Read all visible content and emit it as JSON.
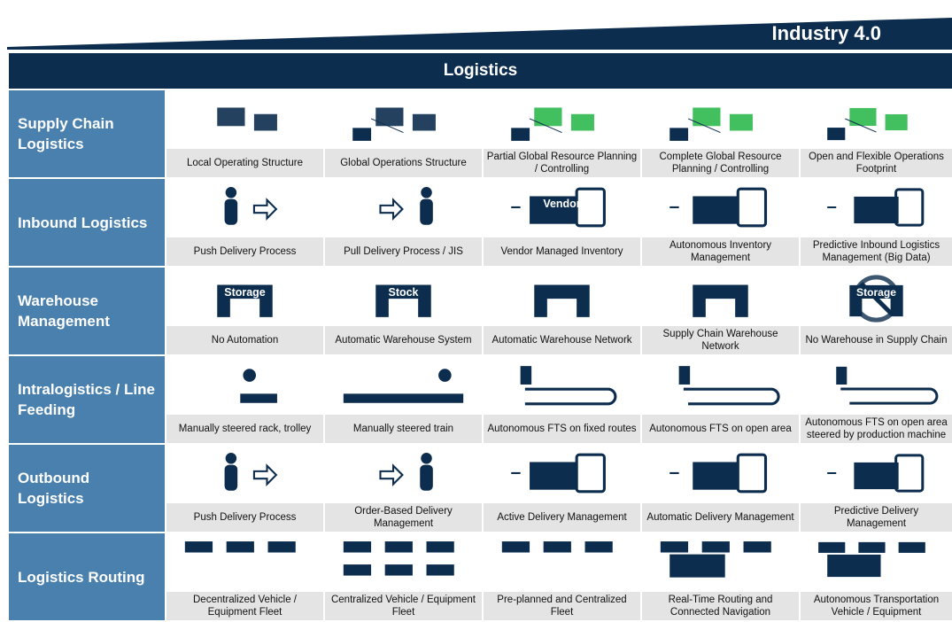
{
  "header": {
    "title": "Industry 4.0"
  },
  "table": {
    "title": "Logistics",
    "rows": [
      {
        "label": "Supply Chain Logistics",
        "cells": [
          {
            "caption": "Local Operating Structure"
          },
          {
            "caption": "Global Operations Structure"
          },
          {
            "caption": "Partial Global Resource Planning / Controlling"
          },
          {
            "caption": "Complete Global Resource Planning / Controlling"
          },
          {
            "caption": "Open and Flexible Operations Footprint"
          }
        ]
      },
      {
        "label": "Inbound Logistics",
        "cells": [
          {
            "caption": "Push Delivery Process"
          },
          {
            "caption": "Pull Delivery Process / JIS"
          },
          {
            "caption": "Vendor Managed Inventory",
            "icon_text": "Vendor"
          },
          {
            "caption": "Autonomous Inventory Management"
          },
          {
            "caption": "Predictive Inbound Logistics Management (Big Data)"
          }
        ]
      },
      {
        "label": "Warehouse Management",
        "cells": [
          {
            "caption": "No Automation",
            "icon_text": "Storage"
          },
          {
            "caption": "Automatic Warehouse System",
            "icon_text": "Stock"
          },
          {
            "caption": "Automatic Warehouse Network"
          },
          {
            "caption": "Supply Chain Warehouse Network"
          },
          {
            "caption": "No Warehouse in Supply Chain",
            "icon_text": "Storage"
          }
        ]
      },
      {
        "label": "Intralogistics / Line Feeding",
        "cells": [
          {
            "caption": "Manually steered rack, trolley"
          },
          {
            "caption": "Manually steered train"
          },
          {
            "caption": "Autonomous FTS on fixed routes"
          },
          {
            "caption": "Autonomous FTS on open area"
          },
          {
            "caption": "Autonomous FTS on open area steered by production machine"
          }
        ]
      },
      {
        "label": "Outbound Logistics",
        "cells": [
          {
            "caption": "Push Delivery Process"
          },
          {
            "caption": "Order-Based Delivery Management"
          },
          {
            "caption": "Active Delivery Management"
          },
          {
            "caption": "Automatic Delivery Management"
          },
          {
            "caption": "Predictive Delivery Management"
          }
        ]
      },
      {
        "label": "Logistics Routing",
        "cells": [
          {
            "caption": "Decentralized Vehicle / Equipment Fleet"
          },
          {
            "caption": "Centralized Vehicle / Equipment Fleet"
          },
          {
            "caption": "Pre-planned and Centralized Fleet"
          },
          {
            "caption": "Real-Time Routing and Connected Navigation"
          },
          {
            "caption": "Autonomous Transportation Vehicle / Equipment"
          }
        ]
      }
    ]
  }
}
